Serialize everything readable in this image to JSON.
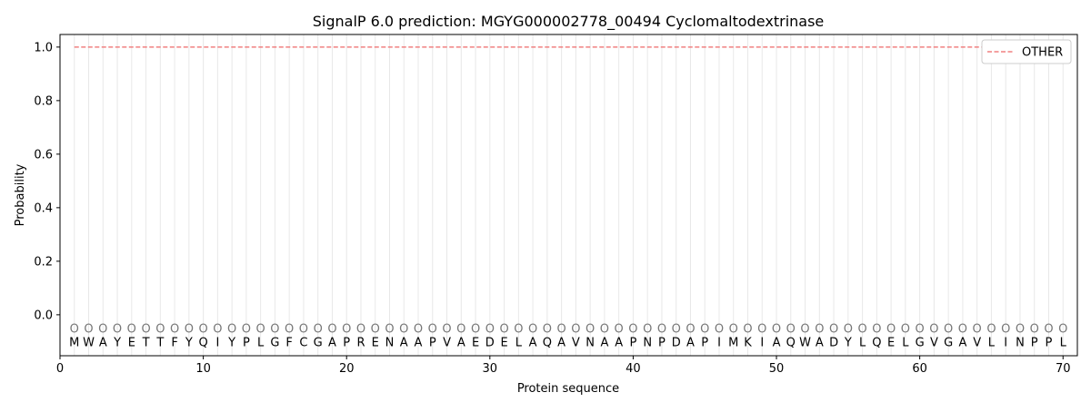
{
  "chart_data": {
    "type": "line",
    "title": "SignalP 6.0 prediction: MGYG000002778_00494 Cyclomaltodextrinase",
    "xlabel": "Protein sequence",
    "ylabel": "Probability",
    "xlim": [
      0,
      71
    ],
    "ylim": [
      -0.153,
      1.047
    ],
    "xticks": [
      0,
      10,
      20,
      30,
      40,
      50,
      60,
      70
    ],
    "yticks": [
      0.0,
      0.2,
      0.4,
      0.6,
      0.8,
      1.0
    ],
    "ytick_labels": [
      "0.0",
      "0.2",
      "0.4",
      "0.6",
      "0.8",
      "1.0"
    ],
    "grid": "vertical lines at each residue",
    "legend_position": "top-right",
    "sequence": [
      "M",
      "W",
      "A",
      "Y",
      "E",
      "T",
      "T",
      "F",
      "Y",
      "Q",
      "I",
      "Y",
      "P",
      "L",
      "G",
      "F",
      "C",
      "G",
      "A",
      "P",
      "R",
      "E",
      "N",
      "A",
      "A",
      "P",
      "V",
      "A",
      "E",
      "D",
      "E",
      "L",
      "A",
      "Q",
      "A",
      "V",
      "N",
      "A",
      "A",
      "P",
      "N",
      "P",
      "D",
      "A",
      "P",
      "I",
      "M",
      "K",
      "I",
      "A",
      "Q",
      "W",
      "A",
      "D",
      "Y",
      "L",
      "Q",
      "E",
      "L",
      "G",
      "V",
      "G",
      "A",
      "V",
      "L",
      "I",
      "N",
      "P",
      "P",
      "L"
    ],
    "predicted_label": "O",
    "series": [
      {
        "name": "OTHER",
        "color": "#f08080",
        "style": "dashed",
        "x_start": 1,
        "x_end": 70,
        "value": 1.0
      }
    ]
  }
}
